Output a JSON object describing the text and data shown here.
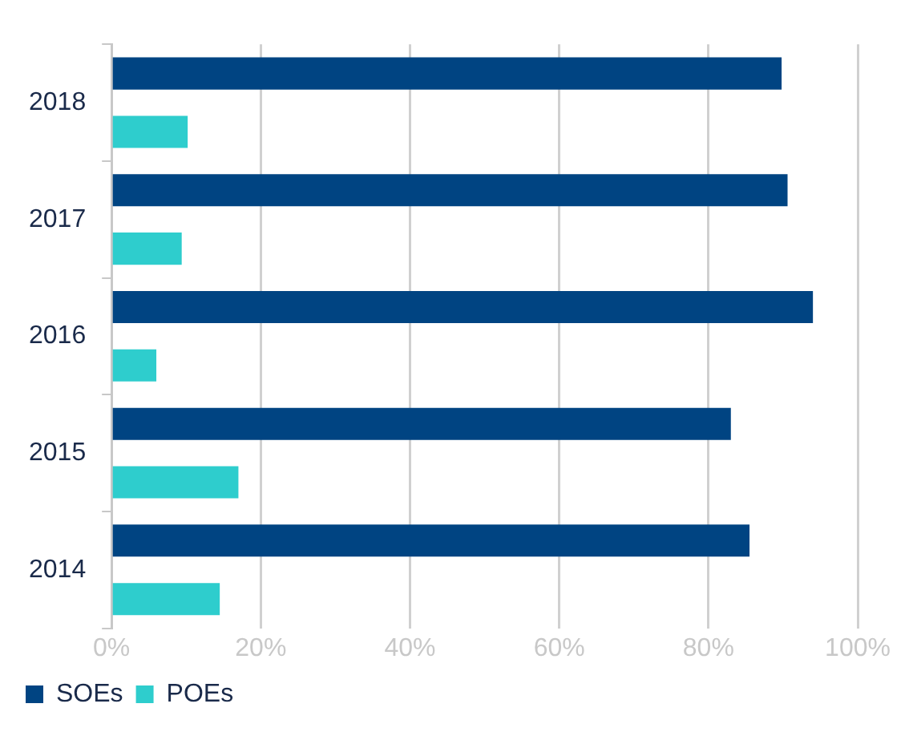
{
  "chart_data": {
    "type": "bar",
    "orientation": "horizontal",
    "categories": [
      "2018",
      "2017",
      "2016",
      "2015",
      "2014"
    ],
    "series": [
      {
        "name": "SOEs",
        "color": "#004482",
        "values": [
          89.8,
          90.6,
          94,
          83,
          85.5
        ]
      },
      {
        "name": "POEs",
        "color": "#2ecdcd",
        "values": [
          10.2,
          9.4,
          6,
          17,
          14.5
        ]
      }
    ],
    "xlim": [
      0,
      100
    ],
    "xticks": [
      {
        "value": 0,
        "label": "0%"
      },
      {
        "value": 20,
        "label": "20%"
      },
      {
        "value": 40,
        "label": "40%"
      },
      {
        "value": 60,
        "label": "60%"
      },
      {
        "value": 80,
        "label": "80%"
      },
      {
        "value": 100,
        "label": "100%"
      }
    ],
    "grid": "x",
    "legend": "bottom left"
  }
}
